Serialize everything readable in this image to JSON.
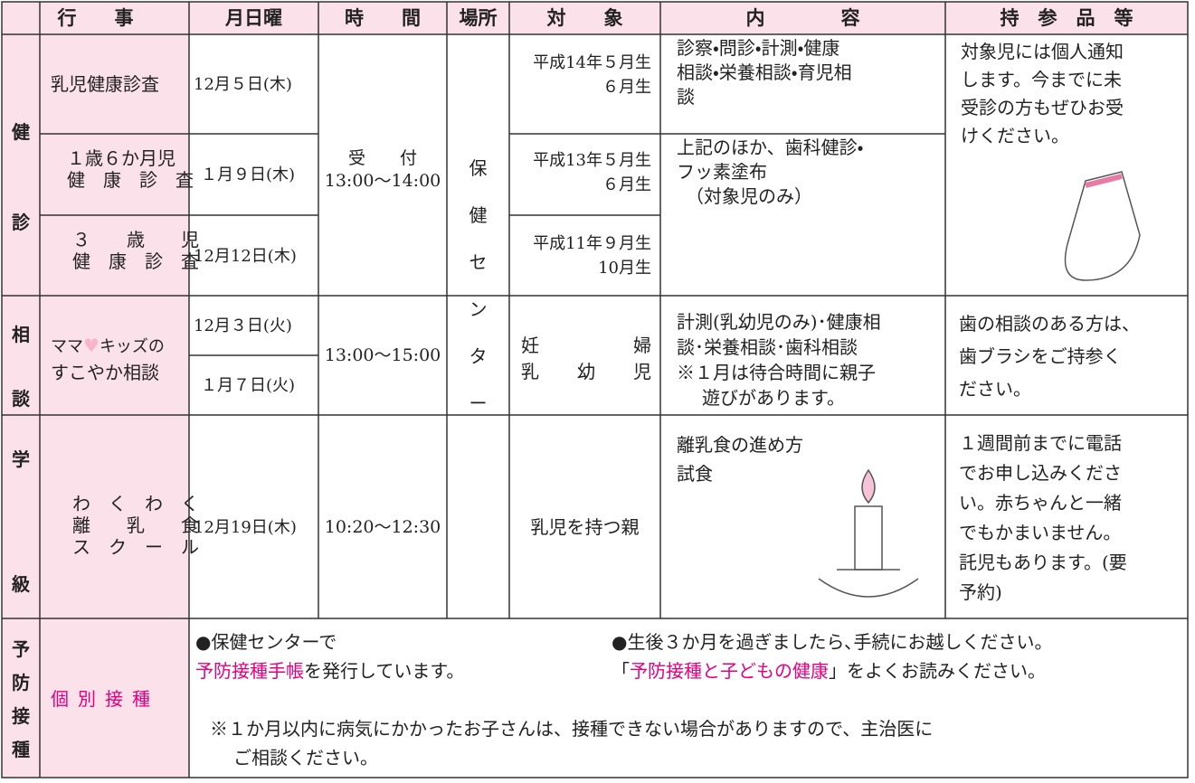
{
  "header": [
    "行　　事",
    "月日曜",
    "時　　間",
    "場所",
    "対　　象",
    "内　　　　容",
    "持　参　品　等"
  ],
  "place": [
    "保",
    "健",
    "セ",
    "ン",
    "タ",
    "ー"
  ],
  "checkup": {
    "label": [
      "健",
      "診"
    ],
    "time": [
      "受　　付",
      "13:00～14:00"
    ],
    "rows": [
      {
        "event": [
          "乳児健康診査"
        ],
        "date": "12月５日(木)",
        "target": [
          "平成14年５月生",
          "６月生"
        ]
      },
      {
        "event": [
          "１歳６か月児",
          "健　康　診　査"
        ],
        "date": "１月９日(木)",
        "target": [
          "平成13年５月生",
          "６月生"
        ]
      },
      {
        "event": [
          "３　　歳　　児",
          "健　康　診　査"
        ],
        "date": "12月12日(木)",
        "target": [
          "平成11年９月生",
          "10月生"
        ]
      }
    ],
    "content": [
      [
        "診察・問診・計測・健康",
        "相談・栄養相談・育児相",
        "談"
      ],
      [
        "上記のほか、歯科健診・",
        "フッ素塗布",
        "（対象児のみ）"
      ]
    ],
    "items": [
      "対象児には個人通知",
      "します。今までに未",
      "受診の方もぜひお受",
      "けください。"
    ]
  },
  "consult": {
    "label": [
      "相",
      "談"
    ],
    "event": [
      "ママ",
      "♥",
      "キッズの",
      "すこやか相談"
    ],
    "dates": [
      "12月３日(火)",
      "１月７日(火)"
    ],
    "time": "13:00～15:00",
    "target": [
      "妊　　　　婦",
      "乳　　幼　　児"
    ],
    "content": [
      "計測(乳幼児のみ)･健康相",
      "談･栄養相談･歯科相談",
      "※１月は待合時間に親子",
      "遊びがあります。"
    ],
    "items": [
      "歯の相談のある方は、",
      "歯ブラシをご持参く",
      "ださい。"
    ]
  },
  "class": {
    "label": [
      "学",
      "級"
    ],
    "event": [
      "わ　く　わ　く",
      "離　　乳　　食",
      "ス　ク　ー　ル"
    ],
    "date": "12月19日(木)",
    "time": "10:20～12:30",
    "target": "乳児を持つ親",
    "content": [
      "離乳食の進め方",
      "試食"
    ],
    "items": [
      "１週間前までに電話",
      "でお申し込みくださ",
      "い。赤ちゃんと一緒",
      "でもかまいません。",
      "託児もあります。(要",
      "予約)"
    ]
  },
  "vaccine": {
    "label": [
      "予",
      "防",
      "接",
      "種"
    ],
    "event": "個別接種",
    "left": [
      "●保健センターで",
      "予防接種手帳",
      "を発行しています。"
    ],
    "right": [
      "●生後３か月を過ぎましたら､手続にお越しください。",
      "「",
      "予防接種と子どもの健康",
      "」をよくお読みください。"
    ],
    "note": [
      "※１か月以内に病気にかかったお子さんは、接種できない場合がありますので、主治医に",
      "ご相談ください。"
    ]
  }
}
